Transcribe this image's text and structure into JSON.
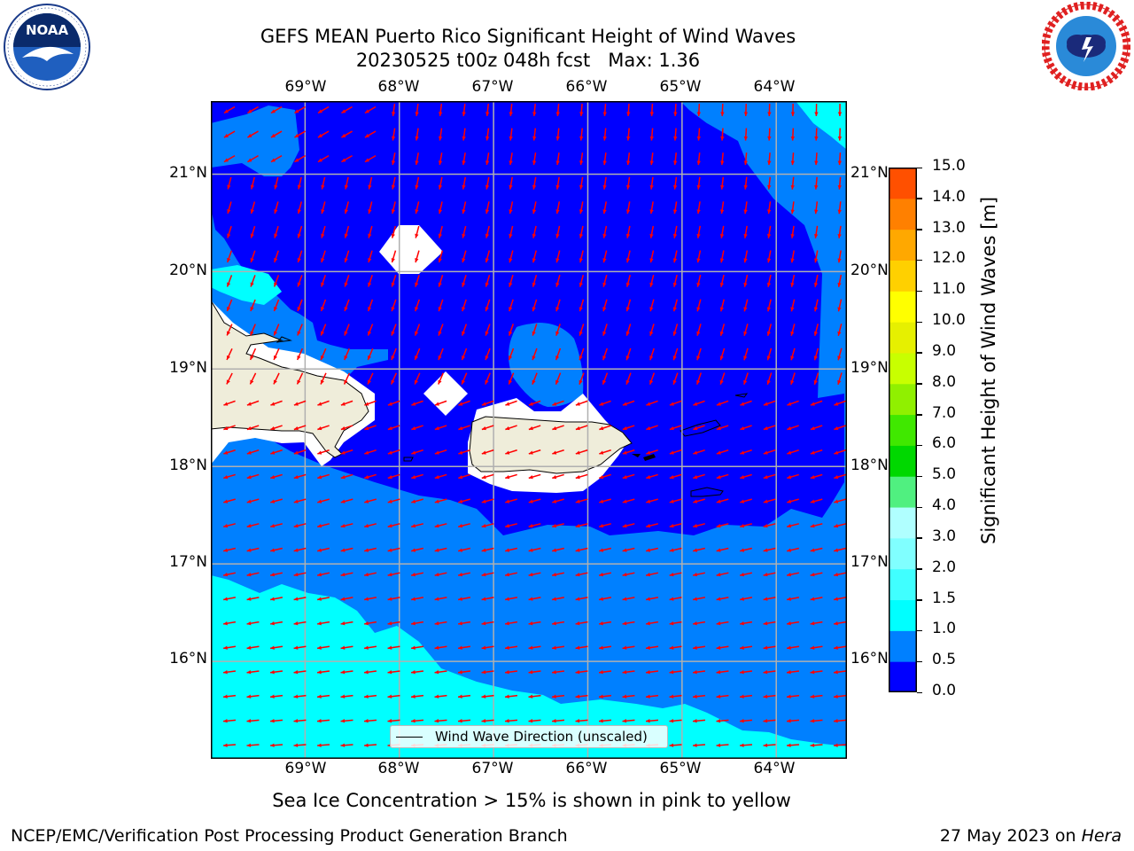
{
  "title": {
    "line1": "GEFS MEAN Puerto Rico Significant Height of Wind Waves",
    "line2": "20230525 t00z 048h fcst   Max: 1.36"
  },
  "logos": {
    "noaa": {
      "text": "NOAA",
      "ring_text": "NATIONAL OCEANIC AND ATMOSPHERIC ADMINISTRATION",
      "icon": "noaa-logo-icon"
    },
    "nws": {
      "ring_text": "NATIONAL WEATHER SERVICE",
      "icon": "nws-logo-icon"
    }
  },
  "map": {
    "lon_labels": [
      "69°W",
      "68°W",
      "67°W",
      "66°W",
      "65°W",
      "64°W"
    ],
    "lat_labels": [
      "21°N",
      "20°N",
      "19°N",
      "18°N",
      "17°N",
      "16°N"
    ],
    "extent": {
      "lon_min": -70.0,
      "lon_max": -63.25,
      "lat_min": 15.0,
      "lat_max": 21.75
    },
    "legend_label": "Wind Wave Direction (unscaled)",
    "arrow_color": "#ff0000",
    "land_color": "#efedda"
  },
  "colorbar": {
    "label": "Significant Height of Wind Waves [m]",
    "ticks": [
      "15.0",
      "14.0",
      "13.0",
      "12.0",
      "11.0",
      "10.0",
      "9.0",
      "8.0",
      "7.0",
      "6.0",
      "5.0",
      "4.0",
      "3.0",
      "2.0",
      "1.5",
      "1.0",
      "0.5",
      "0.0"
    ],
    "colors": [
      "#0000ff",
      "#0080ff",
      "#00ffff",
      "#40ffff",
      "#80ffff",
      "#b0ffff",
      "#50f080",
      "#00d800",
      "#40e800",
      "#90f000",
      "#c8ff00",
      "#e6f000",
      "#ffff00",
      "#ffd000",
      "#ffa800",
      "#ff8000",
      "#ff5000",
      "#ff2800",
      "#ff0000"
    ]
  },
  "subtitle": "Sea Ice Concentration > 15% is shown in pink to yellow",
  "footer": {
    "left": "NCEP/EMC/Verification Post Processing Product Generation Branch",
    "right_prefix": "27 May 2023 on ",
    "right_italic": "Hera"
  }
}
